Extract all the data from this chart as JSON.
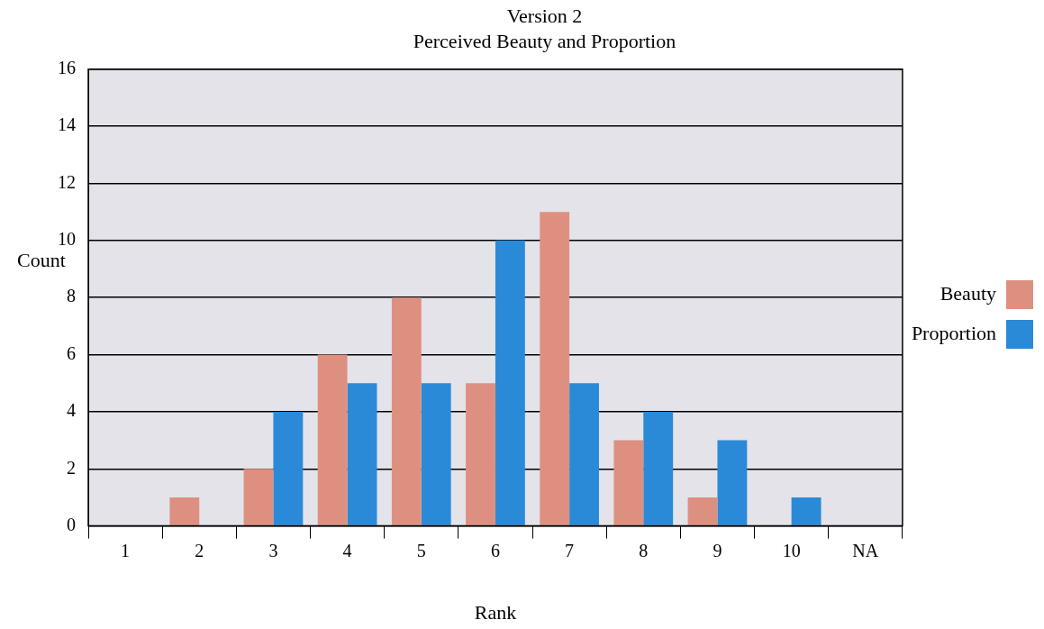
{
  "chart_data": {
    "type": "bar",
    "title": "Version 2",
    "subtitle": "Perceived Beauty and Proportion",
    "xlabel": "Rank",
    "ylabel": "Count",
    "categories": [
      "1",
      "2",
      "3",
      "4",
      "5",
      "6",
      "7",
      "8",
      "9",
      "10",
      "NA"
    ],
    "series": [
      {
        "name": "Beauty",
        "color": "#de9080",
        "values": [
          0,
          1,
          2,
          6,
          8,
          5,
          11,
          3,
          1,
          0,
          0
        ]
      },
      {
        "name": "Proportion",
        "color": "#2a8ad8",
        "values": [
          0,
          0,
          4,
          5,
          5,
          10,
          5,
          4,
          3,
          1,
          0
        ]
      }
    ],
    "ylim": [
      0,
      16
    ],
    "yticks": [
      0,
      2,
      4,
      6,
      8,
      10,
      12,
      14,
      16
    ],
    "grid": "y",
    "legend": "right"
  }
}
